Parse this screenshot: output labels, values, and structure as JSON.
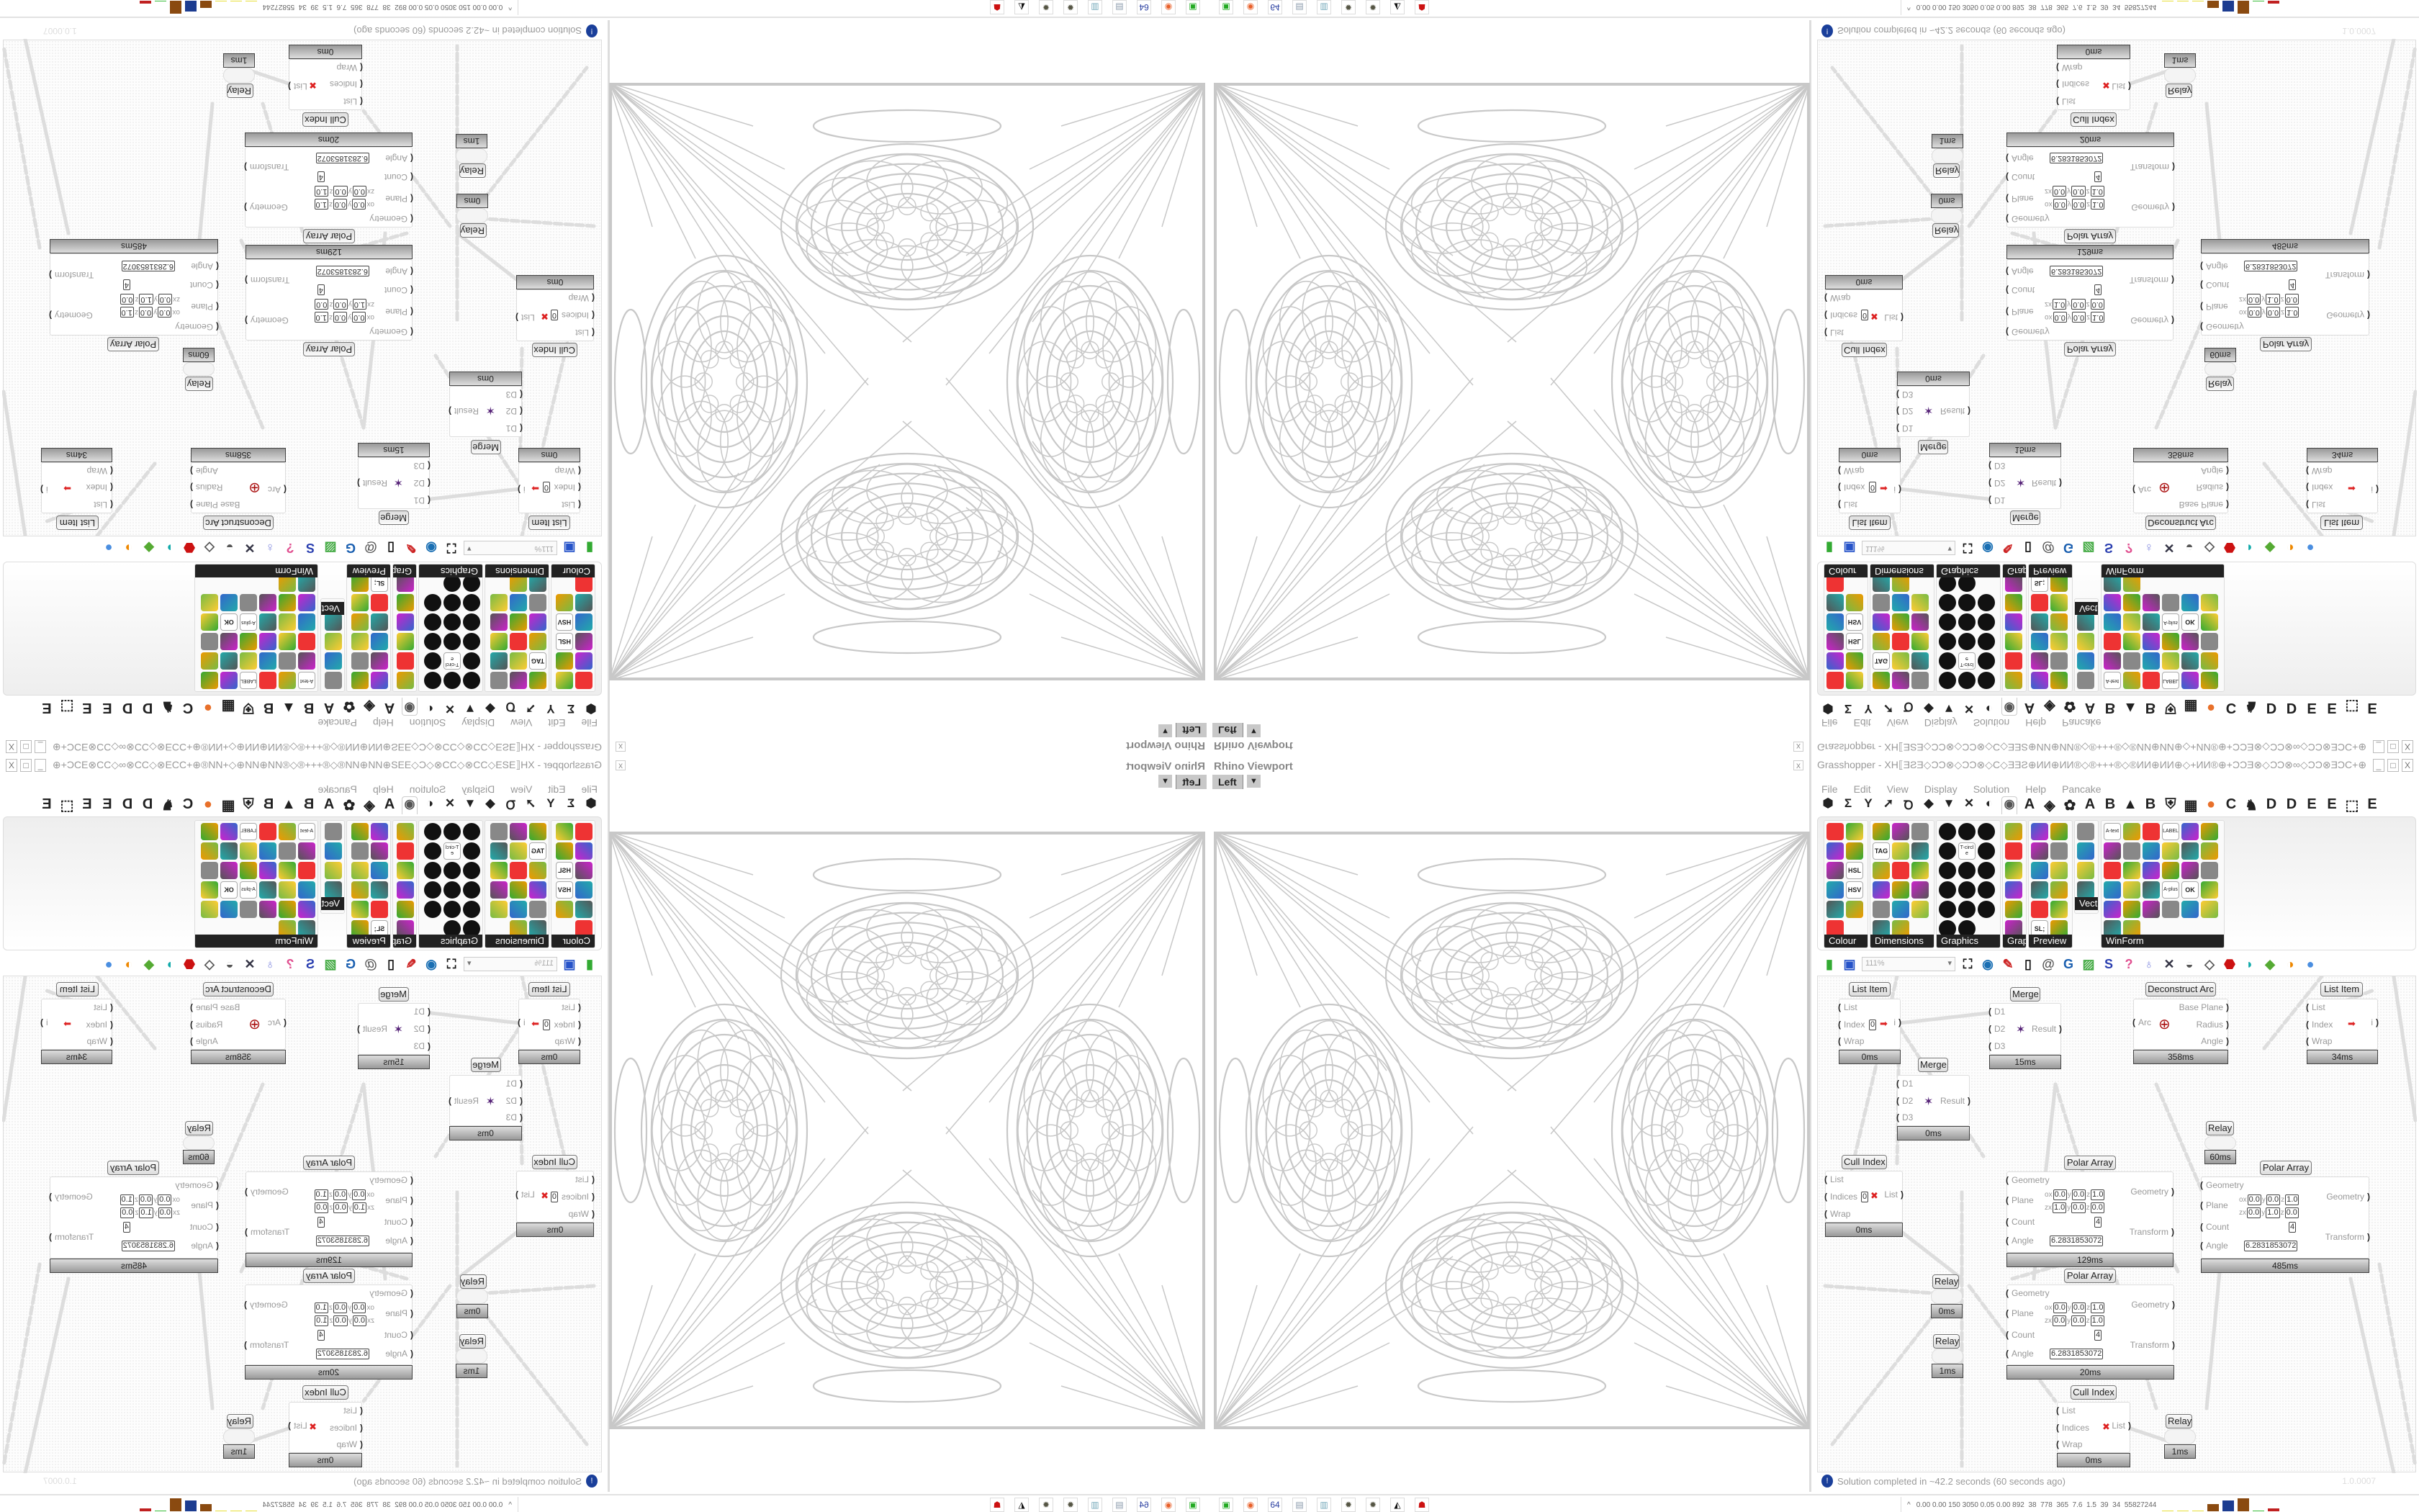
{
  "viewport": {
    "title": "Rhino Viewport",
    "view": "Left",
    "close": "x"
  },
  "grasshopper": {
    "title": "Grasshopper - XH⟦ƎƧƎ◇ƆƆ⊗◇ƆƆ⊗◇C◇ƎƎƧ⊕ИИ⊕ИИ®◇®+++®◇®ИИ⊕ИИ⊕◇+ИИ®⊕+ƆƆƎ⊗◇ƆƆ⊗∞◇ƆƆ⊗ƎƆC+⊕®ИИ+◇⊕ƎƎ⊗ƎƎ⊞+ƧƧ+⊞ƎƎ⊗ƎƎ⊕◇+⊗ƆƆƎƎ⊕+ƆC...",
    "window_buttons": [
      "_",
      "□",
      "X"
    ],
    "menu": [
      "File",
      "Edit",
      "View",
      "Display",
      "Solution",
      "Help",
      "Pancake"
    ],
    "tabs": [
      {
        "icon": "params-hexagon-icon",
        "glyph": "⬢"
      },
      {
        "icon": "maths-sigma-icon",
        "glyph": "Σ"
      },
      {
        "icon": "sets-icon",
        "glyph": "Y"
      },
      {
        "icon": "vector-arrow-icon",
        "glyph": "➚"
      },
      {
        "icon": "curve-icon",
        "glyph": "Ꝺ"
      },
      {
        "icon": "surface-icon",
        "glyph": "◆"
      },
      {
        "icon": "mesh-icon",
        "glyph": "▼"
      },
      {
        "icon": "intersect-icon",
        "glyph": "✕"
      },
      {
        "icon": "transform-icon",
        "glyph": "◐"
      },
      {
        "icon": "display-eye-icon",
        "glyph": "◉",
        "active": true
      },
      {
        "icon": "plugin-a-icon",
        "glyph": "A"
      },
      {
        "icon": "gem-icon",
        "glyph": "◈"
      },
      {
        "icon": "plugin-icon",
        "glyph": "✿"
      },
      {
        "icon": "plugin-a2-icon",
        "glyph": "A"
      },
      {
        "icon": "plugin-b-icon",
        "glyph": "B"
      },
      {
        "icon": "mountain-icon",
        "glyph": "▲"
      },
      {
        "icon": "plugin-b2-icon",
        "glyph": "B"
      },
      {
        "icon": "shield-icon",
        "glyph": "⛨"
      },
      {
        "icon": "grid-icon",
        "glyph": "▦"
      },
      {
        "icon": "orange-circle-icon",
        "glyph": "●"
      },
      {
        "icon": "plugin-c-icon",
        "glyph": "C"
      },
      {
        "icon": "bird-icon",
        "glyph": "♞"
      },
      {
        "icon": "plugin-d-icon",
        "glyph": "D"
      },
      {
        "icon": "plugin-d2-icon",
        "glyph": "D"
      },
      {
        "icon": "plugin-e-icon",
        "glyph": "E"
      },
      {
        "icon": "plugin-e2-icon",
        "glyph": "E"
      },
      {
        "icon": "dotted-square-icon",
        "glyph": "⬚"
      },
      {
        "icon": "plugin-e3-icon",
        "glyph": "E"
      }
    ],
    "ribbon_groups": [
      {
        "label": "Colour",
        "icons": [
          "colour-wheel",
          "gradient",
          "cube-colour",
          "triangle-colour",
          "cube-green",
          "HSL",
          "red-sphere",
          "HSV",
          "red-sphere-small",
          "prism",
          "gradient-square"
        ]
      },
      {
        "label": "Dimensions",
        "icons": [
          "tag-delete",
          "dimension-linear",
          "dimension-angular",
          "TAG",
          "line-dimension",
          "box-dimension",
          "magenta-square",
          "marker-dimension",
          "bracket-dimension",
          "grid-dimension",
          "angle-dimension",
          "arrow-dimension",
          "polyline-dimension",
          "curve-dimension",
          "region-dimension",
          "line-arrows",
          "warning-triangle"
        ]
      },
      {
        "label": "Graphics",
        "icons": [
          "grey-circle",
          "text-circle",
          "eye-circle",
          "dotted-circle",
          "T-circle",
          "frame-circle",
          "blur-circle",
          "list-circle",
          "asterisk-circle",
          "ring",
          "link-circle",
          "save-picture",
          "gradient-circle",
          "node-circle",
          "save-asterisk",
          "sphere-gradient",
          "picture-circle"
        ]
      },
      {
        "label": "Grap...",
        "icons": [
          "histogram",
          "legend",
          "pie-chart",
          "line-graph",
          "image-stack",
          "area-graph"
        ]
      },
      {
        "label": "Preview",
        "icons": [
          "orange-gem",
          "camera",
          "sphere-material",
          "landscape",
          "blue-blobs",
          "heart-blue",
          "red-blobs",
          "heart-green",
          "gradient-diagonal",
          "hearts",
          "SL;",
          "tree-picture"
        ]
      },
      {
        "label": "Vect...",
        "icons": [
          "sort-numbers",
          "polyline-points",
          "red-arrows",
          "green-arrows"
        ]
      },
      {
        "label": "WinForm",
        "icons": [
          "A-text",
          "checklist",
          "text-lines",
          "LABEL",
          "chart-green",
          "grid-export",
          "hatch",
          "slider-ticks",
          "slider-range",
          "grid-yellow",
          "pacman",
          "layout",
          "checkbox",
          "text-list",
          "picture",
          "pie",
          "person",
          "toggle-list",
          "number-box",
          "nest-box",
          "split",
          "A-plus",
          "OK",
          "range",
          "vertical-slider",
          "list-box",
          "panel-green",
          "table",
          "scroll",
          "toggle",
          "bar-chart",
          "arrow-panel"
        ]
      }
    ],
    "toolbar": {
      "zoom": "111%",
      "icons": [
        {
          "name": "new-file-icon",
          "glyph": "▮",
          "color": "#3a3"
        },
        {
          "name": "save-icon",
          "glyph": "▣",
          "color": "#2653c9"
        },
        {
          "name": "zoom-extents-icon",
          "glyph": "⛶",
          "color": "#111"
        },
        {
          "name": "preview-eye-icon",
          "glyph": "◉",
          "color": "#1a6fb3"
        },
        {
          "name": "sketch-brush-icon",
          "glyph": "✎",
          "color": "#c22"
        },
        {
          "name": "bake-icon",
          "glyph": "▯",
          "color": "#111"
        },
        {
          "name": "cluster-at-icon",
          "glyph": "@",
          "color": "#555"
        },
        {
          "name": "gha-icon",
          "glyph": "G",
          "color": "#1a5fb0"
        },
        {
          "name": "canvas-picture-icon",
          "glyph": "▨",
          "color": "#4a4"
        },
        {
          "name": "search-icon",
          "glyph": "S",
          "color": "#2a3fb0"
        },
        {
          "name": "package-icon",
          "glyph": "?",
          "color": "#e05090"
        },
        {
          "name": "lightbulb-icon",
          "glyph": "♁",
          "color": "#8890e0"
        },
        {
          "name": "wires-icon",
          "glyph": "✕",
          "color": "#334"
        },
        {
          "name": "preview-wire-icon",
          "glyph": "◒",
          "color": "#555"
        },
        {
          "name": "preview-shaded-icon",
          "glyph": "◇",
          "color": "#555"
        },
        {
          "name": "preview-selected-icon",
          "glyph": "⬣",
          "color": "#c11"
        },
        {
          "name": "mesh-teal-icon",
          "glyph": "◗",
          "color": "#1aa"
        },
        {
          "name": "mesh-green-icon",
          "glyph": "◆",
          "color": "#5a3"
        },
        {
          "name": "shading-sphere-icon",
          "glyph": "◑",
          "color": "#e80"
        },
        {
          "name": "sphere-blue-icon",
          "glyph": "●",
          "color": "#4a8ee0"
        }
      ]
    },
    "nodes": {
      "list_item_1": {
        "title": "List Item",
        "inputs": [
          "List",
          "Index",
          "Wrap"
        ],
        "index_value": "0",
        "output": "i",
        "time": "0ms"
      },
      "merge_1": {
        "title": "Merge",
        "inputs": [
          "D1",
          "D2",
          "D3"
        ],
        "output": "Result",
        "time": "15ms"
      },
      "deconstruct_arc": {
        "title": "Deconstruct Arc",
        "input": "Arc",
        "outputs": [
          "Base Plane",
          "Radius",
          "Angle"
        ],
        "time": "358ms"
      },
      "list_item_2": {
        "title": "List Item",
        "inputs": [
          "List",
          "Index",
          "Wrap"
        ],
        "output": "i",
        "time": "34ms"
      },
      "merge_2": {
        "title": "Merge",
        "inputs": [
          "D1",
          "D2",
          "D3"
        ],
        "output": "Result",
        "time": "0ms"
      },
      "relay_1": {
        "title": "Relay",
        "time": "60ms"
      },
      "cull_index_1": {
        "title": "Cull Index",
        "inputs": [
          "List",
          "Indices",
          "Wrap"
        ],
        "indices_value": "0",
        "output": "List",
        "time": "0ms"
      },
      "polar_array_1": {
        "title": "Polar Array",
        "inputs": [
          "Geometry",
          "Plane",
          "Count",
          "Angle"
        ],
        "outputs": [
          "Geometry",
          "Transform"
        ],
        "plane_o": [
          "0.0",
          "0.0",
          "1.0"
        ],
        "plane_z": [
          "1.0",
          "0.0",
          "0.0"
        ],
        "count": "4",
        "angle": "6.2831853072",
        "time": "129ms"
      },
      "polar_array_2": {
        "title": "Polar Array",
        "inputs": [
          "Geometry",
          "Plane",
          "Count",
          "Angle"
        ],
        "outputs": [
          "Geometry",
          "Transform"
        ],
        "plane_o": [
          "0.0",
          "0.0",
          "1.0"
        ],
        "plane_z": [
          "0.0",
          "1.0",
          "0.0"
        ],
        "count": "4",
        "angle": "6.2831853072",
        "time": "485ms"
      },
      "polar_array_3": {
        "title": "Polar Array",
        "inputs": [
          "Geometry",
          "Plane",
          "Count",
          "Angle"
        ],
        "outputs": [
          "Geometry",
          "Transform"
        ],
        "plane_o": [
          "0.0",
          "0.0",
          "1.0"
        ],
        "plane_z": [
          "0.0",
          "0.0",
          "1.0"
        ],
        "count": "4",
        "angle": "6.2831853072",
        "time": "20ms"
      },
      "relay_2": {
        "title": "Relay",
        "time": "0ms"
      },
      "relay_3": {
        "title": "Relay",
        "time": "1ms"
      },
      "cull_index_2": {
        "title": "Cull Index",
        "inputs": [
          "List",
          "Indices",
          "Wrap"
        ],
        "output": "List",
        "time": "0ms"
      },
      "relay_4": {
        "title": "Relay",
        "time": "1ms"
      }
    },
    "plane_labels": {
      "o": "o",
      "z": "z",
      "x": "x",
      "y": "y",
      "zc": "z"
    },
    "status": "Solution completed in ~42.2 seconds (60 seconds ago)",
    "version": "1.0.0007"
  },
  "taskbar": {
    "icons": [
      {
        "name": "terminal-icon",
        "glyph": "▣",
        "color": "#2a2"
      },
      {
        "name": "firefox-icon",
        "glyph": "◉",
        "color": "#e8602a"
      },
      {
        "name": "floppy-64-icon",
        "glyph": "64",
        "color": "#2a3fa0"
      },
      {
        "name": "scroll-icon",
        "glyph": "▤",
        "color": "#89a"
      },
      {
        "name": "notepad-icon",
        "glyph": "▥",
        "color": "#7ab"
      },
      {
        "name": "gear-icon",
        "glyph": "✹",
        "color": "#554"
      },
      {
        "name": "gear-2-icon",
        "glyph": "✹",
        "color": "#554"
      },
      {
        "name": "inkscape-icon",
        "glyph": "◭",
        "color": "#111"
      },
      {
        "name": "red-app-icon",
        "glyph": "☗",
        "color": "#c11"
      }
    ],
    "tray_readout": "0.00 0.00 150 3050 0.05 0.00 892  38  778  365  7.6  1.5  39  34  55827244",
    "tray_expand": "^",
    "tray_bars": [
      {
        "color": "#e8e040",
        "level": 0.05
      },
      {
        "color": "#e8e040",
        "level": 0.05
      },
      {
        "color": "#e8e040",
        "level": 0.05
      },
      {
        "color": "#8a4a10",
        "level": 0.55
      },
      {
        "color": "#1c3c90",
        "level": 0.85
      },
      {
        "color": "#8a4a10",
        "level": 1.0
      },
      {
        "color": "#40c040",
        "level": 0.08
      },
      {
        "color": "#c02020",
        "level": 0.2
      }
    ]
  }
}
